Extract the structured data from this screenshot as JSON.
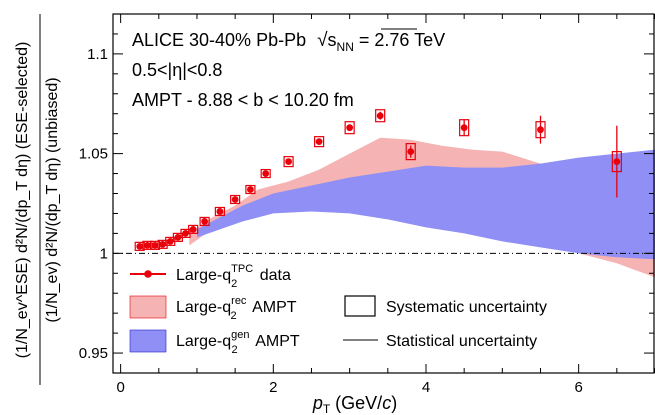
{
  "chart_data": {
    "type": "scatter",
    "x_label": {
      "main": "p",
      "sub": "T",
      "unit": " (GeV/",
      "unit_var": "c",
      "unit_end": ")"
    },
    "y_label_outer": "(1/N_ev^ESE) d²N/(dp_T dη) (ESE-selected)",
    "y_label_inner": "(1/N_ev) d²N/(dp_T dη) (unbiased)",
    "x_range": [
      -0.1,
      7.0
    ],
    "y_range": [
      0.94,
      1.12
    ],
    "x_ticks": [
      0,
      2,
      4,
      6
    ],
    "y_ticks": [
      0.95,
      1.0,
      1.05,
      1.1
    ],
    "x_tick_labels": [
      "0",
      "2",
      "4",
      "6"
    ],
    "y_tick_labels": [
      "0.95",
      "1",
      "1.05",
      "1.1"
    ],
    "reference_line_y": 1.0,
    "annotations": {
      "line1_pre": "ALICE 30-40% Pb-Pb ",
      "line1_sqrt_s": "s",
      "line1_sub": "NN",
      "line1_post": " = 2.76 TeV",
      "line2": "0.5<|η|<0.8",
      "line3": "AMPT - 8.88 < b < 10.20 fm"
    },
    "legend": {
      "data_label": "Large-q",
      "data_sup": "TPC",
      "data_after": " data",
      "rec_label": "Large-q",
      "rec_sup": "rec",
      "rec_after": " AMPT",
      "gen_label": "Large-q",
      "gen_sup": "gen",
      "gen_after": " AMPT",
      "q_sub": "2",
      "syst_label": "Systematic uncertainty",
      "stat_label": "Statistical uncertainty"
    },
    "colors": {
      "data": "#e8000b",
      "rec_band": "#f5b3b3",
      "gen_band": "#8f8ff5",
      "reference_line": "#000000"
    },
    "series": [
      {
        "name": "Large-q2TPC data",
        "points": [
          {
            "x": 0.25,
            "y": 1.0035,
            "stat": 0.001,
            "sys": 0.002
          },
          {
            "x": 0.35,
            "y": 1.004,
            "stat": 0.001,
            "sys": 0.002
          },
          {
            "x": 0.45,
            "y": 1.004,
            "stat": 0.001,
            "sys": 0.002
          },
          {
            "x": 0.55,
            "y": 1.0045,
            "stat": 0.001,
            "sys": 0.002
          },
          {
            "x": 0.65,
            "y": 1.006,
            "stat": 0.001,
            "sys": 0.002
          },
          {
            "x": 0.75,
            "y": 1.008,
            "stat": 0.001,
            "sys": 0.002
          },
          {
            "x": 0.85,
            "y": 1.01,
            "stat": 0.001,
            "sys": 0.002
          },
          {
            "x": 0.95,
            "y": 1.012,
            "stat": 0.001,
            "sys": 0.002
          },
          {
            "x": 1.1,
            "y": 1.016,
            "stat": 0.001,
            "sys": 0.002
          },
          {
            "x": 1.3,
            "y": 1.021,
            "stat": 0.001,
            "sys": 0.002
          },
          {
            "x": 1.5,
            "y": 1.027,
            "stat": 0.001,
            "sys": 0.002
          },
          {
            "x": 1.7,
            "y": 1.032,
            "stat": 0.001,
            "sys": 0.002
          },
          {
            "x": 1.9,
            "y": 1.04,
            "stat": 0.001,
            "sys": 0.002
          },
          {
            "x": 2.2,
            "y": 1.046,
            "stat": 0.001,
            "sys": 0.0025
          },
          {
            "x": 2.6,
            "y": 1.056,
            "stat": 0.001,
            "sys": 0.0025
          },
          {
            "x": 3.0,
            "y": 1.063,
            "stat": 0.0015,
            "sys": 0.003
          },
          {
            "x": 3.4,
            "y": 1.069,
            "stat": 0.002,
            "sys": 0.003
          },
          {
            "x": 3.8,
            "y": 1.051,
            "stat": 0.003,
            "sys": 0.004
          },
          {
            "x": 4.5,
            "y": 1.063,
            "stat": 0.004,
            "sys": 0.004
          },
          {
            "x": 5.5,
            "y": 1.062,
            "stat": 0.007,
            "sys": 0.004
          },
          {
            "x": 6.5,
            "y": 1.046,
            "stat": 0.018,
            "sys": 0.005
          }
        ]
      }
    ],
    "bands": [
      {
        "name": "Large-q2rec AMPT",
        "x": [
          0.9,
          1.2,
          1.5,
          1.8,
          2.2,
          2.6,
          3.0,
          3.4,
          3.8,
          4.2,
          4.6,
          5.0,
          5.5,
          6.0,
          6.5,
          7.0
        ],
        "upper": [
          1.01,
          1.018,
          1.024,
          1.032,
          1.036,
          1.042,
          1.05,
          1.058,
          1.057,
          1.054,
          1.052,
          1.051,
          1.045,
          1.035,
          1.022,
          1.012
        ],
        "lower": [
          1.004,
          1.012,
          1.018,
          1.024,
          1.027,
          1.03,
          1.034,
          1.037,
          1.036,
          1.03,
          1.022,
          1.014,
          1.005,
          1.0,
          0.995,
          0.988
        ]
      },
      {
        "name": "Large-q2gen AMPT",
        "x": [
          1.0,
          1.3,
          1.6,
          2.0,
          2.5,
          3.0,
          3.5,
          4.0,
          4.5,
          5.0,
          5.5,
          6.0,
          6.5,
          7.0
        ],
        "upper": [
          1.012,
          1.018,
          1.024,
          1.03,
          1.034,
          1.038,
          1.041,
          1.044,
          1.043,
          1.043,
          1.045,
          1.048,
          1.05,
          1.052
        ],
        "lower": [
          1.008,
          1.012,
          1.016,
          1.02,
          1.021,
          1.02,
          1.017,
          1.013,
          1.01,
          1.006,
          1.003,
          1.0,
          0.998,
          0.997
        ]
      }
    ]
  }
}
